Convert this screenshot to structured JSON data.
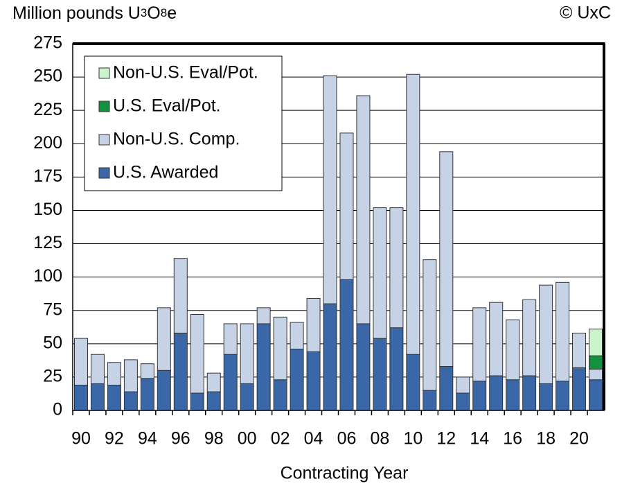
{
  "chart_data": {
    "type": "stacked_bar",
    "title": "Million pounds U3O8e",
    "annotation": "© UxC",
    "x_label": "Contracting Year",
    "categories": [
      "90",
      null,
      "92",
      null,
      "94",
      null,
      "96",
      null,
      "98",
      null,
      "00",
      null,
      "02",
      null,
      "04",
      null,
      "06",
      null,
      "08",
      null,
      "10",
      null,
      "12",
      null,
      "14",
      null,
      "16",
      null,
      "18",
      null,
      "20",
      null
    ],
    "series": [
      {
        "name": "U.S. Awarded",
        "color": "#3b67a6",
        "values": [
          19,
          20,
          19,
          14,
          24,
          30,
          58,
          13,
          14,
          42,
          20,
          65,
          23,
          46,
          44,
          80,
          98,
          65,
          54,
          62,
          42,
          15,
          33,
          13,
          22,
          26,
          23,
          26,
          20,
          22,
          32,
          23
        ]
      },
      {
        "name": "Non-U.S. Comp.",
        "color": "#c6d2e6",
        "values": [
          35,
          22,
          17,
          24,
          11,
          47,
          56,
          59,
          14,
          23,
          45,
          12,
          47,
          20,
          40,
          171,
          110,
          171,
          98,
          90,
          210,
          98,
          161,
          12,
          55,
          55,
          45,
          57,
          74,
          74,
          26,
          8
        ]
      },
      {
        "name": "U.S. Eval/Pot.",
        "color": "#12913f",
        "values": [
          null,
          null,
          null,
          null,
          null,
          null,
          null,
          null,
          null,
          null,
          null,
          null,
          null,
          null,
          null,
          null,
          null,
          null,
          null,
          null,
          null,
          null,
          null,
          null,
          null,
          null,
          null,
          null,
          null,
          null,
          null,
          10
        ]
      },
      {
        "name": "Non-U.S. Eval/Pot.",
        "color": "#ccf4cc",
        "values": [
          null,
          null,
          null,
          null,
          null,
          null,
          null,
          null,
          null,
          null,
          null,
          null,
          null,
          null,
          null,
          null,
          null,
          null,
          null,
          null,
          null,
          null,
          null,
          null,
          null,
          null,
          null,
          null,
          null,
          null,
          null,
          20
        ]
      }
    ],
    "ylim": [
      0,
      275
    ],
    "yticks": [
      0,
      25,
      50,
      75,
      100,
      125,
      150,
      175,
      200,
      225,
      250,
      275
    ],
    "grid": true,
    "legend": "upper left"
  }
}
